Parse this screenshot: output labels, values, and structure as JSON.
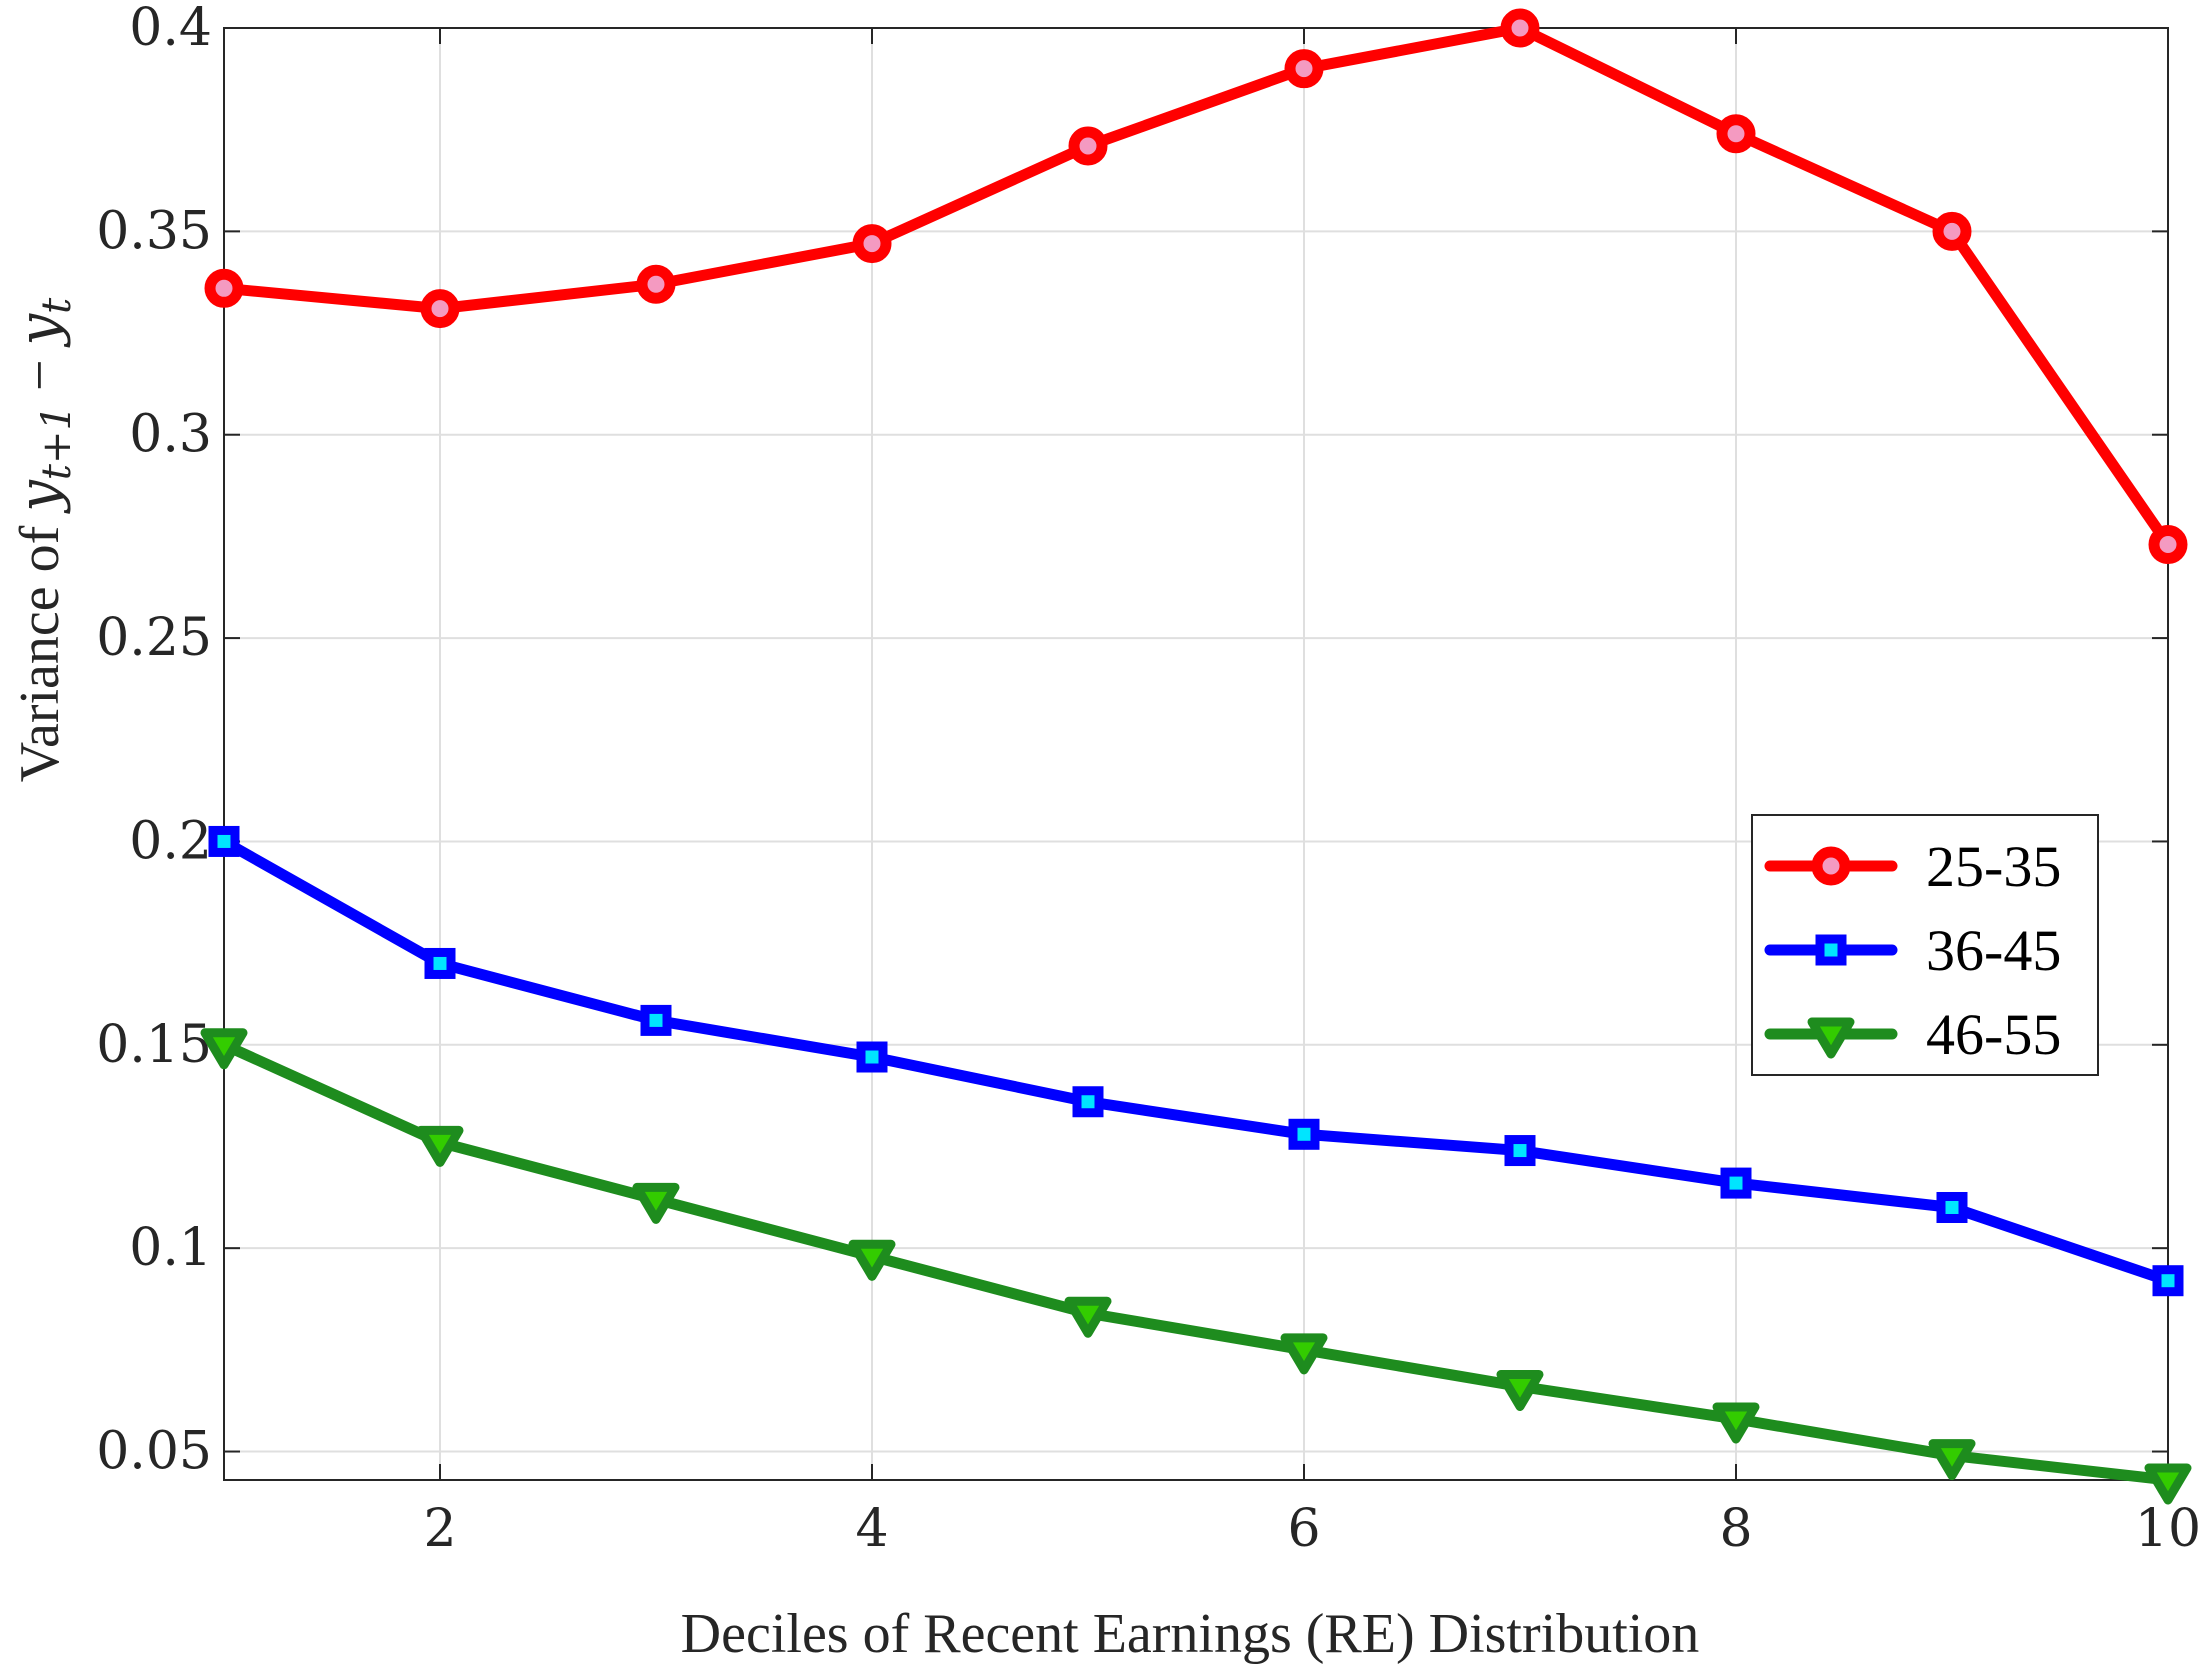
{
  "chart_data": {
    "type": "line",
    "title": "",
    "xlabel": "Deciles of Recent Earnings (RE) Distribution",
    "ylabel": {
      "prefix": "Variance of ",
      "var1": "y",
      "sub1": "t+1",
      "minus": " − ",
      "var2": "y",
      "sub2": "t"
    },
    "xlim": [
      1,
      10
    ],
    "ylim": [
      0.043,
      0.4
    ],
    "x_ticks": [
      2,
      4,
      6,
      8,
      10
    ],
    "x_tick_labels": [
      "2",
      "4",
      "6",
      "8",
      "10"
    ],
    "y_ticks": [
      0.05,
      0.1,
      0.15,
      0.2,
      0.25,
      0.3,
      0.35,
      0.4
    ],
    "y_tick_labels": [
      "0.05",
      "0.1",
      "0.15",
      "0.2",
      "0.25",
      "0.3",
      "0.35",
      "0.4"
    ],
    "grid": true,
    "legend_position": "right-middle",
    "x": [
      1,
      2,
      3,
      4,
      5,
      6,
      7,
      8,
      9,
      10
    ],
    "series": [
      {
        "name": "25-35",
        "marker": "circle",
        "color": "#ff0000",
        "marker_fill": "#f49ac1",
        "values": [
          0.336,
          0.331,
          0.337,
          0.347,
          0.371,
          0.39,
          0.4,
          0.374,
          0.35,
          0.273
        ]
      },
      {
        "name": "36-45",
        "marker": "square",
        "color": "#0000ff",
        "marker_fill": "#00e5ff",
        "values": [
          0.2,
          0.17,
          0.156,
          0.147,
          0.136,
          0.128,
          0.124,
          0.116,
          0.11,
          0.092
        ]
      },
      {
        "name": "46-55",
        "marker": "triangle-down",
        "color": "#1e8c1e",
        "marker_fill": "#33cc00",
        "values": [
          0.15,
          0.126,
          0.112,
          0.098,
          0.084,
          0.075,
          0.066,
          0.058,
          0.049,
          0.043
        ]
      }
    ]
  }
}
